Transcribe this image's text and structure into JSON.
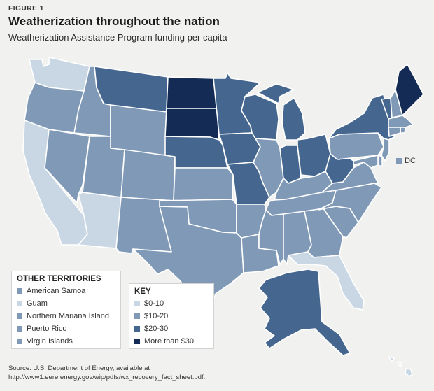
{
  "figure_label": "FIGURE 1",
  "title": "Weatherization throughout the nation",
  "subtitle": "Weatherization Assistance Program funding per capita",
  "colors": {
    "0-10": "#c9d6e3",
    "10-20": "#7f99b6",
    "20-30": "#44668f",
    "30plus": "#142c55"
  },
  "key": {
    "heading": "KEY",
    "items": [
      {
        "label": "$0-10",
        "category": "0-10"
      },
      {
        "label": "$10-20",
        "category": "10-20"
      },
      {
        "label": "$20-30",
        "category": "20-30"
      },
      {
        "label": "More than $30",
        "category": "30plus"
      }
    ]
  },
  "other_territories": {
    "heading": "OTHER TERRITORIES",
    "items": [
      {
        "label": "American Samoa",
        "category": "10-20"
      },
      {
        "label": "Guam",
        "category": "0-10"
      },
      {
        "label": "Northern Mariana Island",
        "category": "10-20"
      },
      {
        "label": "Puerto Rico",
        "category": "10-20"
      },
      {
        "label": "Virgin Islands",
        "category": "10-20"
      }
    ]
  },
  "dc": {
    "label": "DC",
    "category": "10-20"
  },
  "states": {
    "WA": "0-10",
    "OR": "10-20",
    "CA": "0-10",
    "NV": "10-20",
    "ID": "10-20",
    "MT": "20-30",
    "WY": "10-20",
    "UT": "10-20",
    "AZ": "0-10",
    "CO": "10-20",
    "NM": "10-20",
    "ND": "30plus",
    "SD": "30plus",
    "NE": "20-30",
    "KS": "10-20",
    "OK": "10-20",
    "TX": "10-20",
    "MN": "20-30",
    "IA": "20-30",
    "MO": "20-30",
    "AR": "10-20",
    "LA": "10-20",
    "WI": "20-30",
    "IL": "10-20",
    "MI": "20-30",
    "IN": "20-30",
    "OH": "20-30",
    "KY": "10-20",
    "TN": "10-20",
    "MS": "10-20",
    "AL": "10-20",
    "GA": "10-20",
    "FL": "0-10",
    "SC": "10-20",
    "NC": "10-20",
    "VA": "10-20",
    "WV": "20-30",
    "PA": "10-20",
    "NY": "20-30",
    "VT": "20-30",
    "NH": "10-20",
    "ME": "30plus",
    "MA": "10-20",
    "RI": "10-20",
    "CT": "10-20",
    "NJ": "10-20",
    "DE": "10-20",
    "MD": "10-20",
    "AK": "20-30",
    "HI": "0-10"
  },
  "source": "Source: U.S. Department of Energy, available at http://www1.eere.energy.gov/wip/pdfs/wx_recovery_fact_sheet.pdf."
}
